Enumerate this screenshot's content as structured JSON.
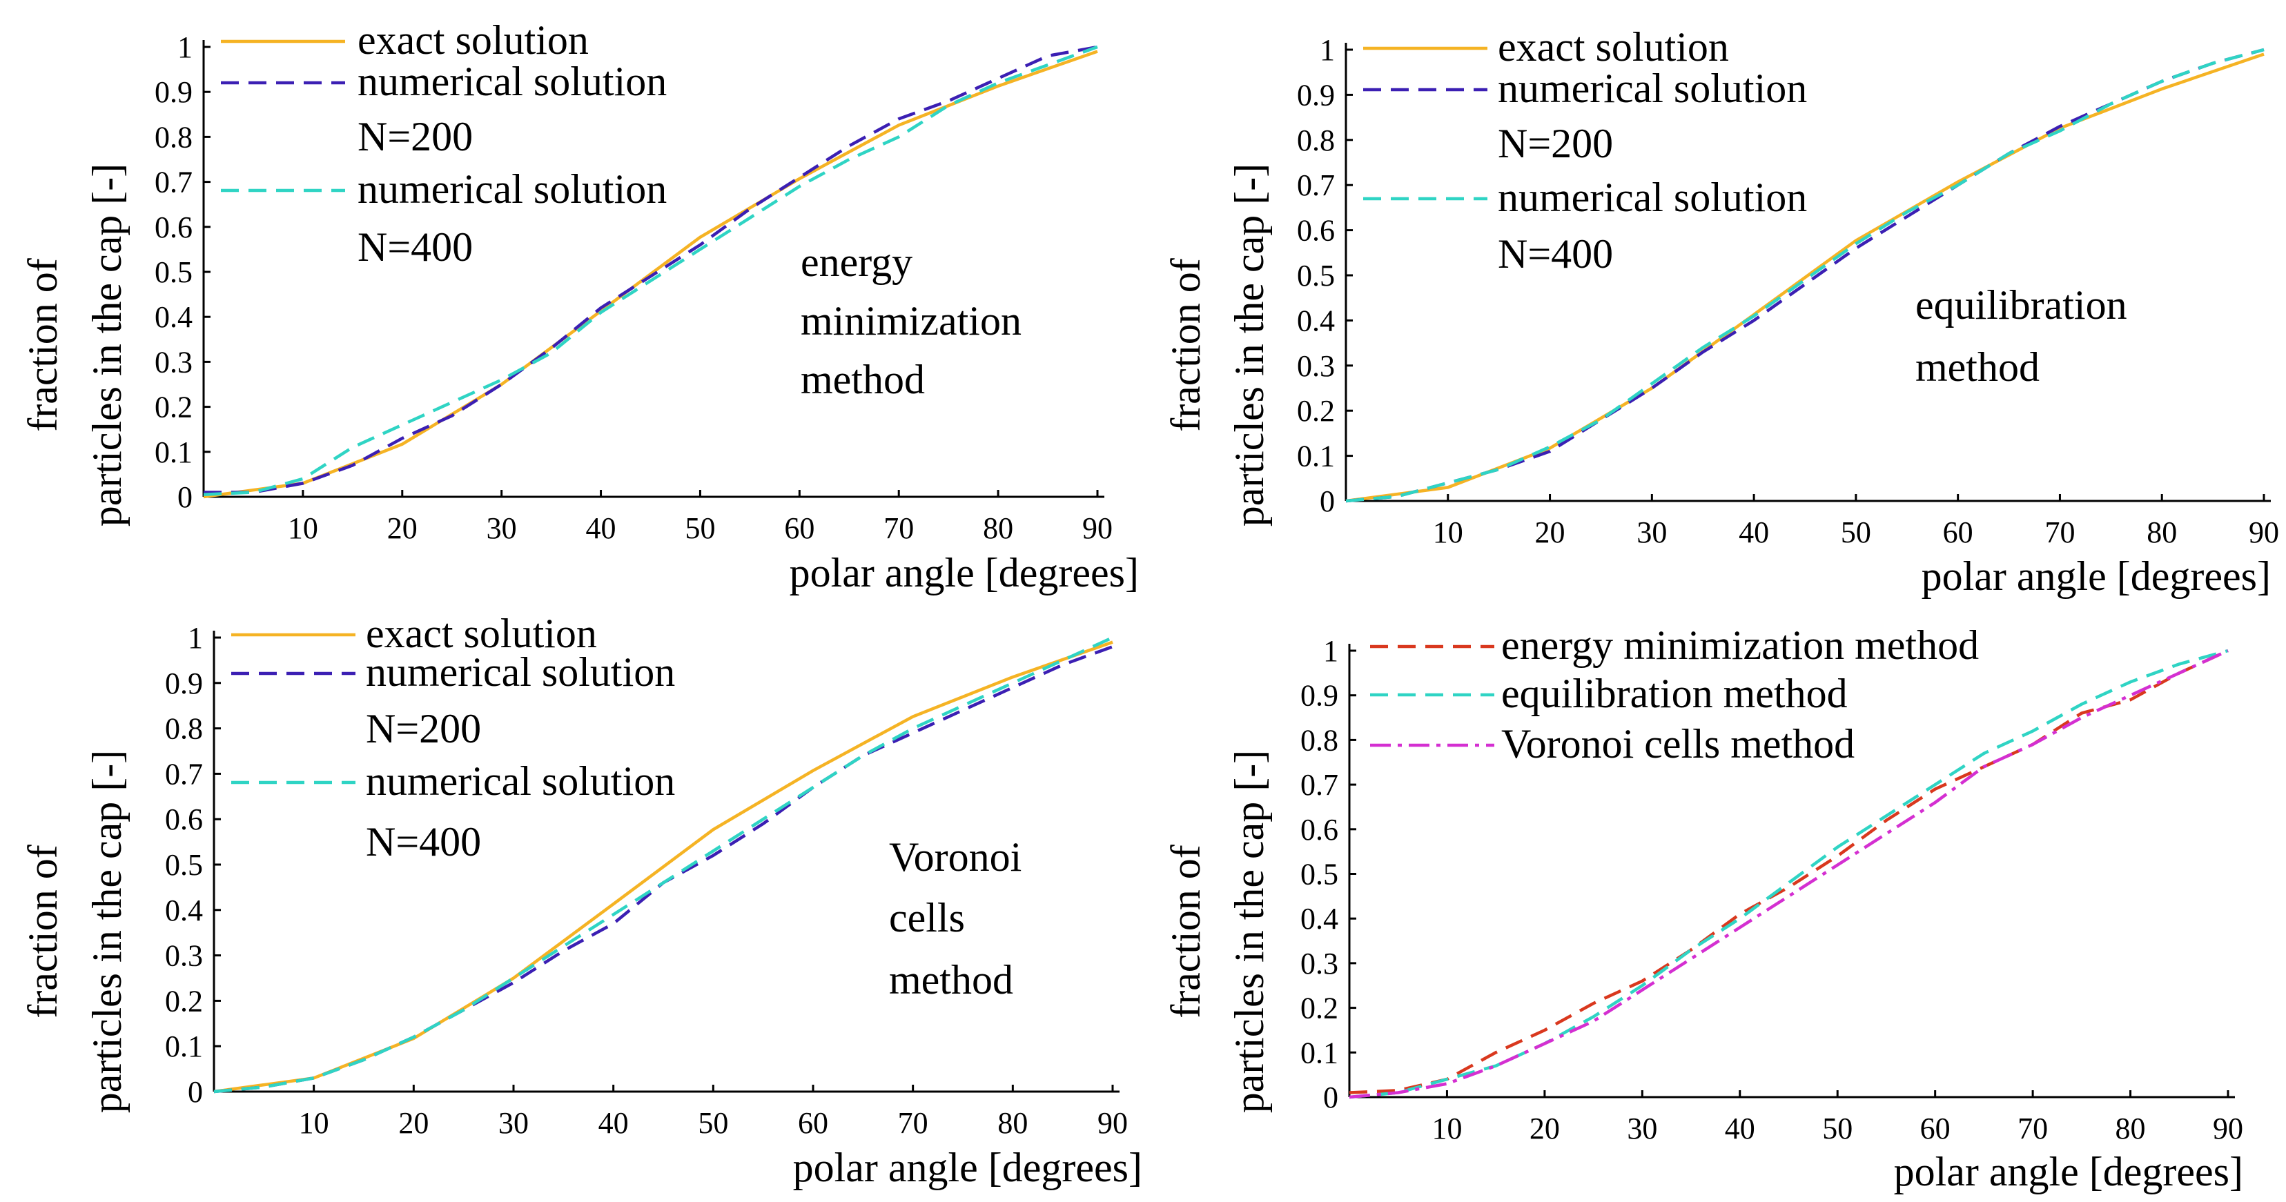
{
  "chart_data": [
    {
      "type": "line",
      "xlabel": "polar angle [degrees]",
      "ylabel_lines": [
        "fraction of",
        "particles in the cap [-]"
      ],
      "xlim": [
        0,
        90
      ],
      "ylim": [
        0,
        1
      ],
      "xticks": [
        10,
        20,
        30,
        40,
        50,
        60,
        70,
        80,
        90
      ],
      "xtick_labels": [
        "10",
        "20",
        "30",
        "40",
        "50",
        "60",
        "70",
        "80",
        "90"
      ],
      "yticks": [
        0,
        0.1,
        0.2,
        0.3,
        0.4,
        0.5,
        0.6,
        0.7,
        0.8,
        0.9,
        1
      ],
      "ytick_labels": [
        "0",
        "0.1",
        "0.2",
        "0.3",
        "0.4",
        "0.5",
        "0.6",
        "0.7",
        "0.8",
        "0.9",
        "1"
      ],
      "legend": [
        {
          "label": "exact solution",
          "color": "#f5b324",
          "dash": "solid"
        },
        {
          "label": "numerical solution",
          "color": "#3b1fb3",
          "dash": "dashed"
        },
        {
          "label": "N=200",
          "color": "",
          "dash": "none"
        },
        {
          "label": "numerical solution",
          "color": "#2fd4c4",
          "dash": "dashed"
        },
        {
          "label": "N=400",
          "color": "",
          "dash": "none"
        }
      ],
      "annotation": [
        "energy",
        "minimization",
        "method"
      ],
      "series": [
        {
          "name": "exact solution",
          "color": "#f5b324",
          "dash": "solid",
          "x": [
            0,
            10,
            20,
            30,
            40,
            50,
            60,
            70,
            80,
            90
          ],
          "y": [
            0,
            0.03,
            0.117,
            0.25,
            0.413,
            0.577,
            0.707,
            0.826,
            0.913,
            0.99
          ]
        },
        {
          "name": "numerical solution N=200",
          "color": "#3b1fb3",
          "dash": "dashed",
          "x": [
            0,
            5,
            10,
            15,
            20,
            25,
            30,
            35,
            40,
            45,
            50,
            55,
            60,
            65,
            70,
            75,
            80,
            85,
            90
          ],
          "y": [
            0.01,
            0.01,
            0.03,
            0.07,
            0.13,
            0.18,
            0.25,
            0.33,
            0.42,
            0.49,
            0.56,
            0.64,
            0.71,
            0.78,
            0.84,
            0.88,
            0.93,
            0.98,
            1.0
          ]
        },
        {
          "name": "numerical solution N=400",
          "color": "#2fd4c4",
          "dash": "dashed",
          "x": [
            0,
            5,
            10,
            15,
            20,
            25,
            30,
            35,
            40,
            45,
            50,
            55,
            60,
            65,
            70,
            75,
            80,
            85,
            90
          ],
          "y": [
            0.005,
            0.01,
            0.04,
            0.11,
            0.16,
            0.21,
            0.26,
            0.32,
            0.41,
            0.48,
            0.55,
            0.62,
            0.69,
            0.75,
            0.8,
            0.87,
            0.92,
            0.96,
            1.0
          ]
        }
      ]
    },
    {
      "type": "line",
      "xlabel": "polar angle [degrees]",
      "ylabel_lines": [
        "fraction of",
        "particles in the cap [-]"
      ],
      "xlim": [
        0,
        90
      ],
      "ylim": [
        0,
        1
      ],
      "xticks": [
        10,
        20,
        30,
        40,
        50,
        60,
        70,
        80,
        90
      ],
      "xtick_labels": [
        "10",
        "20",
        "30",
        "40",
        "50",
        "60",
        "70",
        "80",
        "90"
      ],
      "yticks": [
        0,
        0.1,
        0.2,
        0.3,
        0.4,
        0.5,
        0.6,
        0.7,
        0.8,
        0.9,
        1
      ],
      "ytick_labels": [
        "0",
        "0.1",
        "0.2",
        "0.3",
        "0.4",
        "0.5",
        "0.6",
        "0.7",
        "0.8",
        "0.9",
        "1"
      ],
      "legend": [
        {
          "label": "exact solution",
          "color": "#f5b324",
          "dash": "solid"
        },
        {
          "label": "numerical solution",
          "color": "#3b1fb3",
          "dash": "dashed"
        },
        {
          "label": "N=200",
          "color": "",
          "dash": "none"
        },
        {
          "label": "numerical solution",
          "color": "#2fd4c4",
          "dash": "dashed"
        },
        {
          "label": "N=400",
          "color": "",
          "dash": "none"
        }
      ],
      "annotation": [
        "equilibration",
        "method"
      ],
      "series": [
        {
          "name": "exact solution",
          "color": "#f5b324",
          "dash": "solid",
          "x": [
            0,
            10,
            20,
            30,
            40,
            50,
            60,
            70,
            80,
            90
          ],
          "y": [
            0,
            0.03,
            0.117,
            0.25,
            0.413,
            0.577,
            0.707,
            0.826,
            0.913,
            0.99
          ]
        },
        {
          "name": "numerical solution N=200",
          "color": "#3b1fb3",
          "dash": "dashed",
          "x": [
            0,
            5,
            10,
            15,
            20,
            25,
            30,
            35,
            40,
            45,
            50,
            55,
            60,
            65,
            70,
            75,
            80,
            85,
            90
          ],
          "y": [
            0,
            0.01,
            0.04,
            0.07,
            0.11,
            0.18,
            0.25,
            0.33,
            0.4,
            0.48,
            0.56,
            0.63,
            0.7,
            0.77,
            0.83,
            0.88,
            0.93,
            0.97,
            1.0
          ]
        },
        {
          "name": "numerical solution N=400",
          "color": "#2fd4c4",
          "dash": "dashed",
          "x": [
            0,
            5,
            10,
            15,
            20,
            25,
            30,
            35,
            40,
            45,
            50,
            55,
            60,
            65,
            70,
            75,
            80,
            85,
            90
          ],
          "y": [
            0,
            0.01,
            0.04,
            0.07,
            0.12,
            0.18,
            0.26,
            0.34,
            0.41,
            0.49,
            0.57,
            0.64,
            0.7,
            0.77,
            0.82,
            0.88,
            0.93,
            0.97,
            1.0
          ]
        }
      ]
    },
    {
      "type": "line",
      "xlabel": "polar angle [degrees]",
      "ylabel_lines": [
        "fraction of",
        "particles in the cap [-]"
      ],
      "xlim": [
        0,
        90
      ],
      "ylim": [
        0,
        1
      ],
      "xticks": [
        10,
        20,
        30,
        40,
        50,
        60,
        70,
        80,
        90
      ],
      "xtick_labels": [
        "10",
        "20",
        "30",
        "40",
        "50",
        "60",
        "70",
        "80",
        "90"
      ],
      "yticks": [
        0,
        0.1,
        0.2,
        0.3,
        0.4,
        0.5,
        0.6,
        0.7,
        0.8,
        0.9,
        1
      ],
      "ytick_labels": [
        "0",
        "0.1",
        "0.2",
        "0.3",
        "0.4",
        "0.5",
        "0.6",
        "0.7",
        "0.8",
        "0.9",
        "1"
      ],
      "legend": [
        {
          "label": "exact solution",
          "color": "#f5b324",
          "dash": "solid"
        },
        {
          "label": "numerical solution",
          "color": "#3b1fb3",
          "dash": "dashed"
        },
        {
          "label": "N=200",
          "color": "",
          "dash": "none"
        },
        {
          "label": "numerical solution",
          "color": "#2fd4c4",
          "dash": "dashed"
        },
        {
          "label": "N=400",
          "color": "",
          "dash": "none"
        }
      ],
      "annotation": [
        "Voronoi",
        "cells",
        "method"
      ],
      "series": [
        {
          "name": "exact solution",
          "color": "#f5b324",
          "dash": "solid",
          "x": [
            0,
            10,
            20,
            30,
            40,
            50,
            60,
            70,
            80,
            90
          ],
          "y": [
            0,
            0.03,
            0.117,
            0.25,
            0.413,
            0.577,
            0.707,
            0.826,
            0.913,
            0.99
          ]
        },
        {
          "name": "numerical solution N=200",
          "color": "#3b1fb3",
          "dash": "dashed",
          "x": [
            0,
            5,
            10,
            15,
            20,
            25,
            30,
            35,
            40,
            45,
            50,
            55,
            60,
            65,
            70,
            75,
            80,
            85,
            90
          ],
          "y": [
            0,
            0.01,
            0.03,
            0.07,
            0.12,
            0.18,
            0.24,
            0.31,
            0.37,
            0.46,
            0.52,
            0.59,
            0.67,
            0.74,
            0.79,
            0.84,
            0.89,
            0.94,
            0.98
          ]
        },
        {
          "name": "numerical solution N=400",
          "color": "#2fd4c4",
          "dash": "dashed",
          "x": [
            0,
            5,
            10,
            15,
            20,
            25,
            30,
            35,
            40,
            45,
            50,
            55,
            60,
            65,
            70,
            75,
            80,
            85,
            90
          ],
          "y": [
            0,
            0.01,
            0.03,
            0.07,
            0.12,
            0.18,
            0.25,
            0.32,
            0.39,
            0.46,
            0.53,
            0.6,
            0.67,
            0.74,
            0.8,
            0.85,
            0.9,
            0.95,
            1.0
          ]
        }
      ]
    },
    {
      "type": "line",
      "xlabel": "polar angle [degrees]",
      "ylabel_lines": [
        "fraction of",
        "particles in the cap [-]"
      ],
      "xlim": [
        0,
        90
      ],
      "ylim": [
        0,
        1
      ],
      "xticks": [
        10,
        20,
        30,
        40,
        50,
        60,
        70,
        80,
        90
      ],
      "xtick_labels": [
        "10",
        "20",
        "30",
        "40",
        "50",
        "60",
        "70",
        "80",
        "90"
      ],
      "yticks": [
        0,
        0.1,
        0.2,
        0.3,
        0.4,
        0.5,
        0.6,
        0.7,
        0.8,
        0.9,
        1
      ],
      "ytick_labels": [
        "0",
        "0.1",
        "0.2",
        "0.3",
        "0.4",
        "0.5",
        "0.6",
        "0.7",
        "0.8",
        "0.9",
        "1"
      ],
      "legend": [
        {
          "label": "energy minimization method",
          "color": "#d9381e",
          "dash": "dashed"
        },
        {
          "label": "equilibration method",
          "color": "#2fd4c4",
          "dash": "dashed"
        },
        {
          "label": "Voronoi cells method",
          "color": "#d42fd1",
          "dash": "dashdot"
        }
      ],
      "annotation": [],
      "series": [
        {
          "name": "energy minimization method",
          "color": "#d9381e",
          "dash": "dashed",
          "x": [
            0,
            5,
            10,
            15,
            20,
            25,
            30,
            35,
            40,
            45,
            50,
            55,
            60,
            65,
            70,
            75,
            80,
            85,
            90
          ],
          "y": [
            0.01,
            0.015,
            0.04,
            0.1,
            0.15,
            0.21,
            0.26,
            0.33,
            0.41,
            0.47,
            0.54,
            0.62,
            0.69,
            0.74,
            0.79,
            0.86,
            0.89,
            0.95,
            1.0
          ]
        },
        {
          "name": "equilibration method",
          "color": "#2fd4c4",
          "dash": "dashed",
          "x": [
            0,
            5,
            10,
            15,
            20,
            25,
            30,
            35,
            40,
            45,
            50,
            55,
            60,
            65,
            70,
            75,
            80,
            85,
            90
          ],
          "y": [
            0,
            0.01,
            0.04,
            0.07,
            0.12,
            0.18,
            0.25,
            0.33,
            0.4,
            0.48,
            0.56,
            0.63,
            0.7,
            0.77,
            0.82,
            0.88,
            0.93,
            0.97,
            1.0
          ]
        },
        {
          "name": "Voronoi cells method",
          "color": "#d42fd1",
          "dash": "dashdot",
          "x": [
            0,
            5,
            10,
            15,
            20,
            25,
            30,
            35,
            40,
            45,
            50,
            55,
            60,
            65,
            70,
            75,
            80,
            85,
            90
          ],
          "y": [
            0,
            0.01,
            0.03,
            0.07,
            0.12,
            0.17,
            0.24,
            0.31,
            0.38,
            0.45,
            0.52,
            0.59,
            0.66,
            0.74,
            0.79,
            0.85,
            0.9,
            0.95,
            1.0
          ]
        }
      ]
    }
  ]
}
